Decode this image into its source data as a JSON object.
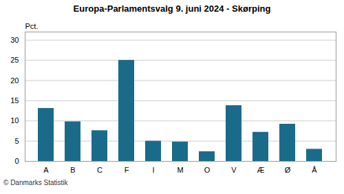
{
  "chart_data": {
    "type": "bar",
    "title": "Europa-Parlamentsvalg 9. juni 2024 - Skørping",
    "categories": [
      "A",
      "B",
      "C",
      "F",
      "I",
      "M",
      "O",
      "V",
      "Æ",
      "Ø",
      "Å"
    ],
    "values": [
      13.1,
      9.8,
      7.6,
      25.0,
      5.0,
      4.8,
      2.4,
      13.8,
      7.2,
      9.2,
      3.0
    ],
    "color": "#1a6b8a",
    "ylabel": "Pct.",
    "ylim": [
      0,
      32
    ],
    "yticks": [
      0,
      5,
      10,
      15,
      20,
      25,
      30
    ],
    "grid": true,
    "caption": "© Danmarks Statistik"
  }
}
